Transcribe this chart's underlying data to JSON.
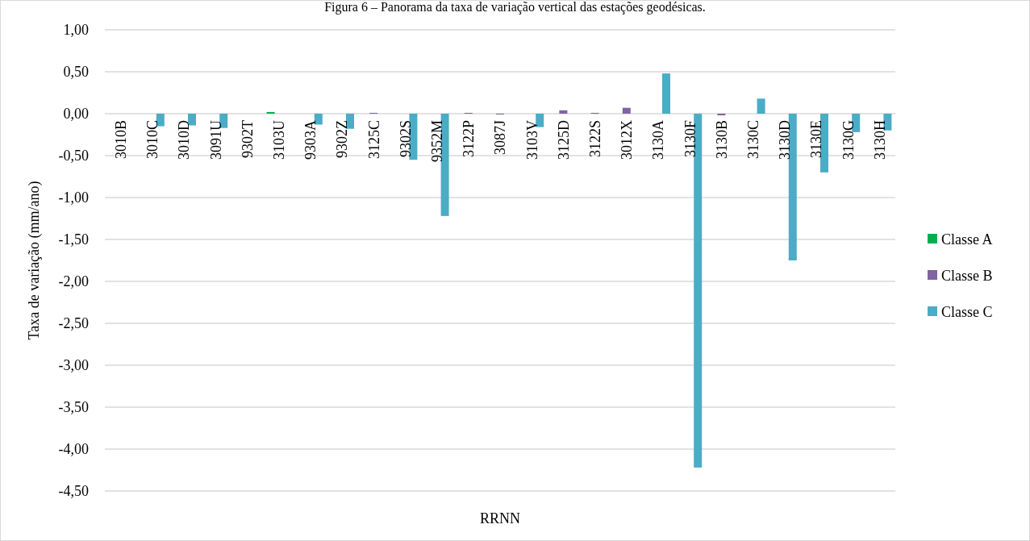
{
  "chart_data": {
    "type": "bar",
    "title": "Figura 6 – Panorama da taxa de variação vertical das estações geodésicas.",
    "xlabel": "RRNN",
    "ylabel": "Taxa de variação (mm/ano)",
    "categories": [
      "3010B",
      "3010C",
      "3010D",
      "3091U",
      "9302T",
      "3103U",
      "9303A",
      "9302Z",
      "3125C",
      "9302S",
      "9352M",
      "3122P",
      "3087J",
      "3103V",
      "3125D",
      "3122S",
      "3012X",
      "3130A",
      "3130F",
      "3130B",
      "3130C",
      "3130D",
      "3130E",
      "3130G",
      "3130H"
    ],
    "series": [
      {
        "name": "Classe A",
        "color": "#00b050",
        "values": [
          null,
          null,
          null,
          null,
          null,
          0.02,
          null,
          null,
          null,
          null,
          null,
          null,
          null,
          null,
          null,
          null,
          null,
          null,
          null,
          null,
          null,
          null,
          null,
          null,
          null
        ]
      },
      {
        "name": "Classe B",
        "color": "#8064a2",
        "values": [
          null,
          null,
          null,
          null,
          null,
          null,
          null,
          null,
          0.01,
          null,
          null,
          0.01,
          -0.01,
          null,
          0.04,
          0.01,
          0.07,
          null,
          null,
          -0.02,
          null,
          null,
          null,
          null,
          null
        ]
      },
      {
        "name": "Classe C",
        "color": "#4bacc6",
        "values": [
          null,
          -0.15,
          -0.14,
          -0.17,
          null,
          null,
          -0.13,
          -0.18,
          null,
          -0.55,
          -1.22,
          null,
          null,
          -0.16,
          null,
          null,
          null,
          0.48,
          -4.22,
          null,
          0.18,
          -1.75,
          -0.7,
          -0.22,
          -0.2
        ]
      }
    ],
    "ylim": [
      -4.5,
      1
    ],
    "yticks": [
      {
        "value": 1,
        "label": "1,00"
      },
      {
        "value": 0.5,
        "label": "0,50"
      },
      {
        "value": 0,
        "label": "0,00"
      },
      {
        "value": -0.5,
        "label": "-0,50"
      },
      {
        "value": -1,
        "label": "-1,00"
      },
      {
        "value": -1.5,
        "label": "-1,50"
      },
      {
        "value": -2,
        "label": "-2,00"
      },
      {
        "value": -2.5,
        "label": "-2,50"
      },
      {
        "value": -3,
        "label": "-3,00"
      },
      {
        "value": -3.5,
        "label": "-3,50"
      },
      {
        "value": -4,
        "label": "-4,00"
      },
      {
        "value": -4.5,
        "label": "-4,50"
      }
    ],
    "grid": "y",
    "legend": "right"
  }
}
